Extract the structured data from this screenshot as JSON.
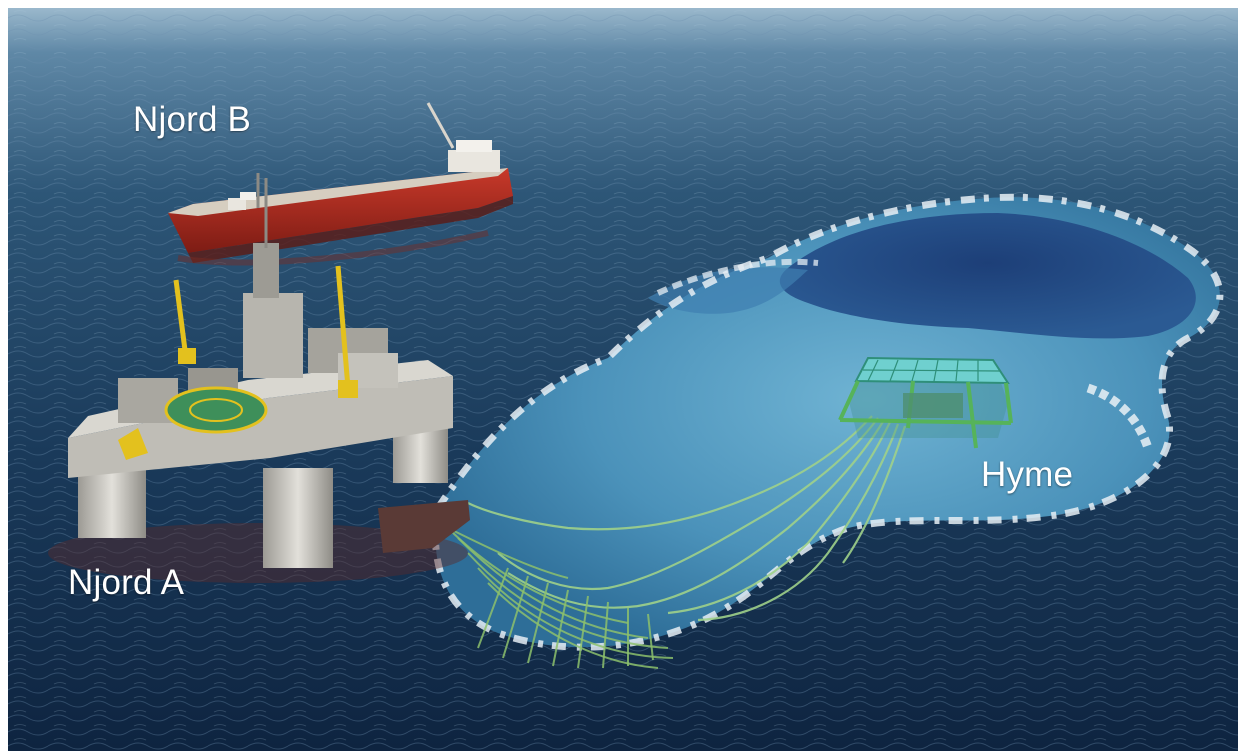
{
  "labels": {
    "njord_b": "Njord B",
    "njord_a": "Njord A",
    "hyme": "Hyme"
  },
  "colors": {
    "sea_dark": "#10263f",
    "sea_mid": "#2c5576",
    "sea_horizon": "#8fb1c9",
    "sea_cutaway": "#4f9bc2",
    "hull_red": "#b02b1f",
    "tanker_deck": "#c9c2b4",
    "platform_grey": "#c8c6c0",
    "helideck_green": "#3e8f5a",
    "crane_yellow": "#e3c11e",
    "riser_green": "#8fbf6a",
    "template_cyan": "#69c9c9",
    "template_green": "#4fae5c"
  }
}
